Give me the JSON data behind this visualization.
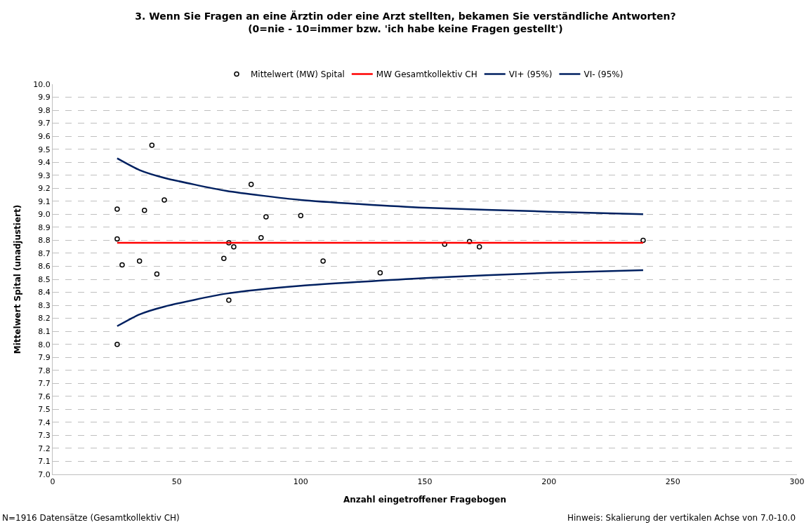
{
  "chart_data": {
    "type": "scatter",
    "title": "3. Wenn Sie Fragen an eine Ärztin oder eine Arzt stellten, bekamen Sie verständliche Antworten?\n(0=nie - 10=immer bzw. 'ich habe keine Fragen gestellt')",
    "xlabel": "Anzahl eingetroffener Fragebogen",
    "ylabel": "Mittelwert Spital (unadjustiert)",
    "series": [
      {
        "name": "Mittelwert (MW) Spital",
        "color": "#000000",
        "marker": "circle",
        "x": [
          26,
          26,
          26,
          28,
          35,
          37,
          40,
          42,
          45,
          69,
          71,
          71,
          73,
          80,
          84,
          86,
          100,
          109,
          132,
          158,
          168,
          172,
          238
        ],
        "values": [
          9.04,
          8.81,
          8.0,
          8.61,
          8.64,
          9.03,
          9.53,
          8.54,
          9.11,
          8.66,
          8.78,
          8.34,
          8.75,
          9.23,
          8.82,
          8.98,
          8.99,
          8.64,
          8.55,
          8.77,
          8.79,
          8.75,
          8.8
        ]
      },
      {
        "name": "MW Gesamtkollektiv CH",
        "type": "line",
        "color": "#ff0000",
        "marker": "none",
        "x": [
          26,
          238
        ],
        "values": [
          8.78,
          8.78
        ]
      },
      {
        "name": "VI+ (95%)",
        "type": "line",
        "color": "#002060",
        "marker": "none",
        "x": [
          26,
          35,
          45,
          70,
          100,
          150,
          200,
          238
        ],
        "values": [
          9.43,
          9.34,
          9.28,
          9.18,
          9.11,
          9.05,
          9.02,
          9.0
        ]
      },
      {
        "name": "VI- (95%)",
        "type": "line",
        "color": "#002060",
        "marker": "none",
        "x": [
          26,
          35,
          45,
          70,
          100,
          150,
          200,
          238
        ],
        "values": [
          8.14,
          8.23,
          8.29,
          8.39,
          8.45,
          8.51,
          8.55,
          8.57
        ]
      }
    ],
    "xlim": [
      0,
      300
    ],
    "xticks": [
      0,
      50,
      100,
      150,
      200,
      250,
      300
    ],
    "ylim": [
      7.0,
      10.0
    ],
    "yticks": [
      {
        "value": 7.0,
        "label": "7.0"
      },
      7.1,
      7.2,
      7.3,
      7.4,
      7.5,
      7.6,
      7.7,
      7.8,
      7.9,
      {
        "value": 8.0,
        "label": "8.0"
      },
      8.1,
      8.2,
      8.3,
      8.4,
      8.5,
      8.6,
      8.7,
      8.8,
      8.9,
      {
        "value": 9.0,
        "label": "9.0"
      },
      9.1,
      9.2,
      9.3,
      9.4,
      9.5,
      9.6,
      9.7,
      9.8,
      9.9,
      {
        "value": 10.0,
        "label": "10.0"
      }
    ],
    "grid": "y",
    "legend": "top",
    "line_style": "solid",
    "annotations": [
      "N=1916 Datensätze (Gesamtkollektiv CH)",
      "Hinweis: Skalierung der vertikalen Achse von 7.0-10.0"
    ]
  }
}
